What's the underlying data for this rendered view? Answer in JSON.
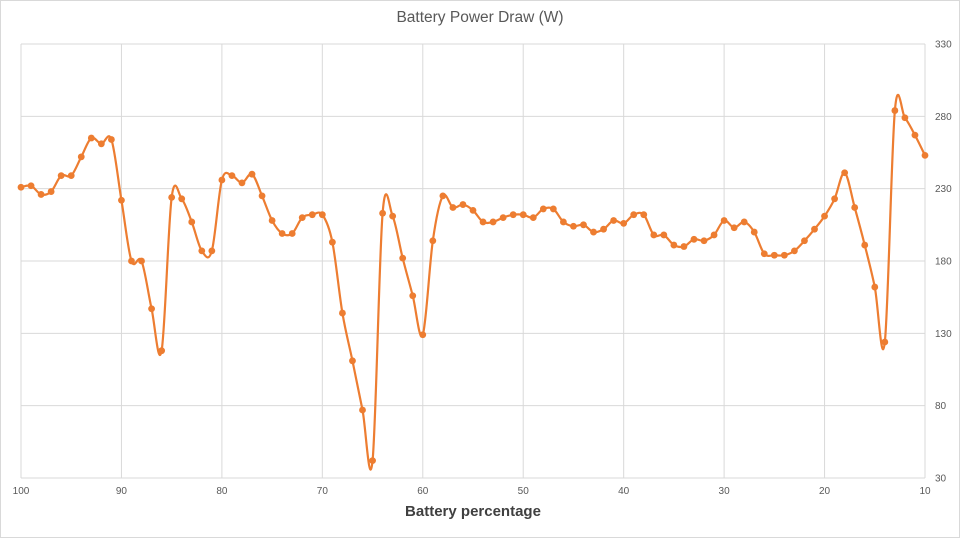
{
  "chart_data": {
    "type": "line",
    "title": "Battery Power Draw (W)",
    "xlabel": "Battery percentage",
    "ylabel": "",
    "x_reversed": true,
    "xlim": [
      100,
      10
    ],
    "ylim": [
      30,
      330
    ],
    "x_ticks": [
      "100",
      "90",
      "80",
      "70",
      "60",
      "50",
      "40",
      "30",
      "20",
      "10"
    ],
    "y_ticks": [
      "30",
      "80",
      "130",
      "180",
      "230",
      "280",
      "330"
    ],
    "y_axis_side": "right",
    "grid": true,
    "legend": "none",
    "series_color": "#ED7D31",
    "x": [
      100,
      99,
      98,
      97,
      96,
      95,
      94,
      93,
      92,
      91,
      90,
      89,
      88,
      87,
      86,
      85,
      84,
      83,
      82,
      81,
      80,
      79,
      78,
      77,
      76,
      75,
      74,
      73,
      72,
      71,
      70,
      69,
      68,
      67,
      66,
      65,
      64,
      63,
      62,
      61,
      60,
      59,
      58,
      57,
      56,
      55,
      54,
      53,
      52,
      51,
      50,
      49,
      48,
      47,
      46,
      45,
      44,
      43,
      42,
      41,
      40,
      39,
      38,
      37,
      36,
      35,
      34,
      33,
      32,
      31,
      30,
      29,
      28,
      27,
      26,
      25,
      24,
      23,
      22,
      21,
      20,
      19,
      18,
      17,
      16,
      15,
      14,
      13,
      12,
      11,
      10
    ],
    "series": [
      {
        "values": [
          231,
          232,
          226,
          228,
          239,
          239,
          252,
          265,
          261,
          264,
          222,
          180,
          180,
          147,
          118,
          224,
          223,
          207,
          187,
          187,
          236,
          239,
          234,
          240,
          225,
          208,
          199,
          199,
          210,
          212,
          212,
          193,
          144,
          111,
          77,
          42,
          213,
          211,
          182,
          156,
          129,
          194,
          225,
          217,
          219,
          215,
          207,
          207,
          210,
          212,
          212,
          210,
          216,
          216,
          207,
          204,
          205,
          200,
          202,
          208,
          206,
          212,
          212,
          198,
          198,
          191,
          190,
          195,
          194,
          198,
          208,
          203,
          207,
          200,
          185,
          184,
          184,
          187,
          194,
          202,
          211,
          223,
          241,
          217,
          191,
          162,
          124,
          284,
          279,
          267,
          253
        ]
      }
    ]
  }
}
